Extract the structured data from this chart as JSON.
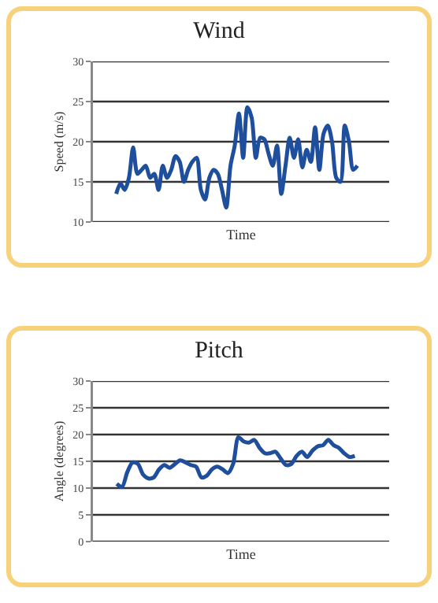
{
  "chart_data": [
    {
      "type": "line",
      "title": "Wind",
      "xlabel": "Time",
      "ylabel": "Speed (m/s)",
      "categories": [
        null,
        null,
        null,
        null,
        null,
        null,
        null,
        null,
        null,
        null,
        null,
        null,
        null,
        null,
        null,
        null,
        null,
        null,
        null,
        null,
        null,
        null,
        null,
        null,
        null,
        null,
        null,
        null,
        null,
        null,
        null,
        null,
        null,
        null,
        null,
        null,
        null,
        null,
        null,
        null,
        null,
        null,
        null,
        null,
        null,
        null,
        null,
        null,
        null,
        null,
        null,
        null,
        null,
        null,
        null,
        null,
        null,
        null,
        null,
        null,
        null,
        null,
        null,
        null,
        null,
        null,
        null,
        null,
        null,
        null
      ],
      "series": [
        {
          "color": "#1f4e9c",
          "values": [
            null,
            null,
            null,
            null,
            null,
            13.5,
            14.8,
            14,
            15.5,
            19.3,
            16,
            16.5,
            17,
            15.5,
            16,
            14,
            17,
            15.5,
            16.5,
            18.2,
            17.5,
            15,
            16.5,
            17.5,
            18,
            14,
            12.8,
            15.5,
            16.5,
            16,
            14,
            11.8,
            17,
            19.5,
            23.5,
            18,
            24.3,
            23,
            18,
            20.5,
            20.3,
            18.5,
            17,
            19.5,
            13.5,
            17,
            20.5,
            18,
            20.3,
            16.8,
            19,
            17.5,
            21.8,
            16.5,
            21,
            22,
            20,
            15.5,
            15,
            22,
            20,
            16.5,
            17,
            null,
            null,
            null,
            null,
            null,
            null,
            null
          ]
        }
      ],
      "ylim": [
        10,
        30
      ],
      "yticks": [
        10,
        15,
        20,
        25,
        30
      ],
      "grid": "y",
      "tick_labels": "y",
      "marker": "none",
      "line_style": "solid"
    },
    {
      "type": "line",
      "title": "Pitch",
      "xlabel": "Time",
      "ylabel": "Angle (degrees)",
      "categories": [
        null,
        null,
        null,
        null,
        null,
        null,
        null,
        null,
        null,
        null,
        null,
        null,
        null,
        null,
        null,
        null,
        null,
        null,
        null,
        null,
        null,
        null,
        null,
        null,
        null,
        null,
        null,
        null,
        null,
        null,
        null,
        null,
        null,
        null,
        null,
        null,
        null,
        null,
        null,
        null,
        null,
        null,
        null,
        null,
        null,
        null,
        null,
        null,
        null,
        null,
        null,
        null,
        null,
        null,
        null,
        null
      ],
      "series": [
        {
          "color": "#1f4e9c",
          "values": [
            null,
            null,
            null,
            null,
            10.8,
            10.2,
            13,
            14.8,
            14.5,
            12.5,
            11.8,
            12,
            13.5,
            14.3,
            13.8,
            14.5,
            15.2,
            14.8,
            14.3,
            14,
            12,
            12.3,
            13.5,
            14,
            13.5,
            12.8,
            14.5,
            19.5,
            18.7,
            18.5,
            19,
            17.5,
            16.5,
            16.5,
            16.8,
            15.5,
            14.3,
            14.5,
            16,
            16.8,
            15.8,
            17,
            17.8,
            18,
            19,
            18,
            17.5,
            16.5,
            15.8,
            16,
            null,
            null,
            null,
            null,
            null,
            null
          ]
        }
      ],
      "ylim": [
        0,
        30
      ],
      "yticks": [
        0,
        5,
        10,
        15,
        20,
        25,
        30
      ],
      "grid": "y",
      "tick_labels": "y",
      "marker": "none",
      "line_style": "solid"
    }
  ]
}
